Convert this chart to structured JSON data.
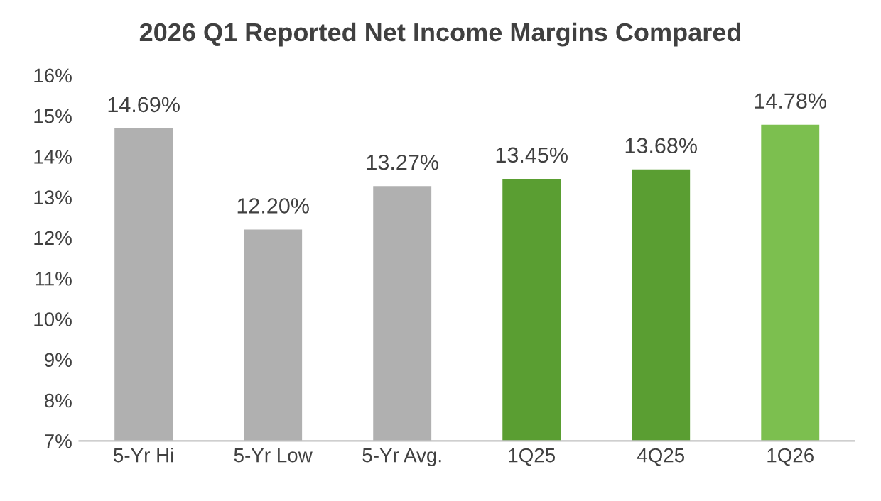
{
  "chart_data": {
    "type": "bar",
    "title": "2026 Q1 Reported Net Income Margins Compared",
    "categories": [
      "5-Yr Hi",
      "5-Yr Low",
      "5-Yr Avg.",
      "1Q25",
      "4Q25",
      "1Q26"
    ],
    "values": [
      14.69,
      12.2,
      13.27,
      13.45,
      13.68,
      14.78
    ],
    "value_labels": [
      "14.69%",
      "12.20%",
      "13.27%",
      "13.45%",
      "13.68%",
      "14.78%"
    ],
    "colors": [
      "#b0b0b0",
      "#b0b0b0",
      "#b0b0b0",
      "#5a9e32",
      "#5a9e32",
      "#7cbf4f"
    ],
    "ylim": [
      7,
      16
    ],
    "yticks": [
      {
        "value": 7,
        "label": "7%"
      },
      {
        "value": 8,
        "label": "8%"
      },
      {
        "value": 9,
        "label": "9%"
      },
      {
        "value": 10,
        "label": "10%"
      },
      {
        "value": 11,
        "label": "11%"
      },
      {
        "value": 12,
        "label": "12%"
      },
      {
        "value": 13,
        "label": "13%"
      },
      {
        "value": 14,
        "label": "14%"
      },
      {
        "value": 15,
        "label": "15%"
      },
      {
        "value": 16,
        "label": "16%"
      }
    ],
    "grid": false,
    "legend": false
  }
}
